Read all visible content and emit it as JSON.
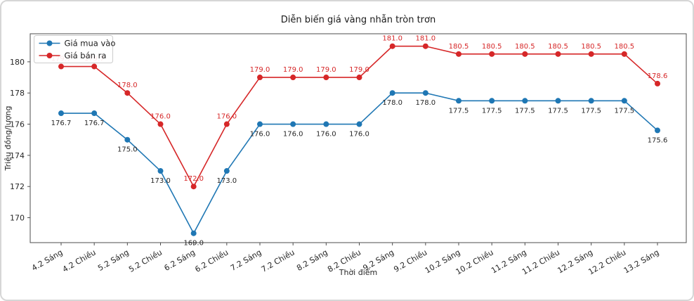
{
  "chart_data": {
    "type": "line",
    "title": "Diễn biến giá vàng nhẫn tròn trơn",
    "xlabel": "Thời điểm",
    "ylabel": "Triệu đồng/lượng",
    "categories": [
      "4.2 Sáng",
      "4.2 Chiều",
      "5.2 Sáng",
      "5.2 Chiều",
      "6.2 Sáng",
      "6.2 Chiều",
      "7.2 Sáng",
      "7.2 Chiều",
      "8.2 Sáng",
      "8.2 Chiều",
      "9.2 Sáng",
      "9.2 Chiều",
      "10.2 Sáng",
      "10.2 Chiều",
      "11.2 Sáng",
      "11.2 Chiều",
      "12.2 Sáng",
      "12.2 Chiều",
      "13.2 Sáng"
    ],
    "series": [
      {
        "name": "Giá mua vào",
        "color": "#1f77b4",
        "label_color": "#262626",
        "label_position": "below",
        "values": [
          176.7,
          176.7,
          175.0,
          173.0,
          169.0,
          173.0,
          176.0,
          176.0,
          176.0,
          176.0,
          178.0,
          178.0,
          177.5,
          177.5,
          177.5,
          177.5,
          177.5,
          177.5,
          175.6
        ]
      },
      {
        "name": "Giá bán ra",
        "color": "#d62728",
        "label_color": "#d62728",
        "label_position": "above",
        "values": [
          179.7,
          179.7,
          178.0,
          176.0,
          172.0,
          176.0,
          179.0,
          179.0,
          179.0,
          179.0,
          181.0,
          181.0,
          180.5,
          180.5,
          180.5,
          180.5,
          180.5,
          180.5,
          178.6
        ]
      }
    ],
    "yticks": [
      170,
      172,
      174,
      176,
      178,
      180
    ],
    "ylim": [
      168.4,
      181.8
    ],
    "legend_position": "upper left",
    "grid": false,
    "marker": "circle",
    "value_label_decimals": 1,
    "text_color": "#262626",
    "spine_color": "#4d4d4d"
  }
}
